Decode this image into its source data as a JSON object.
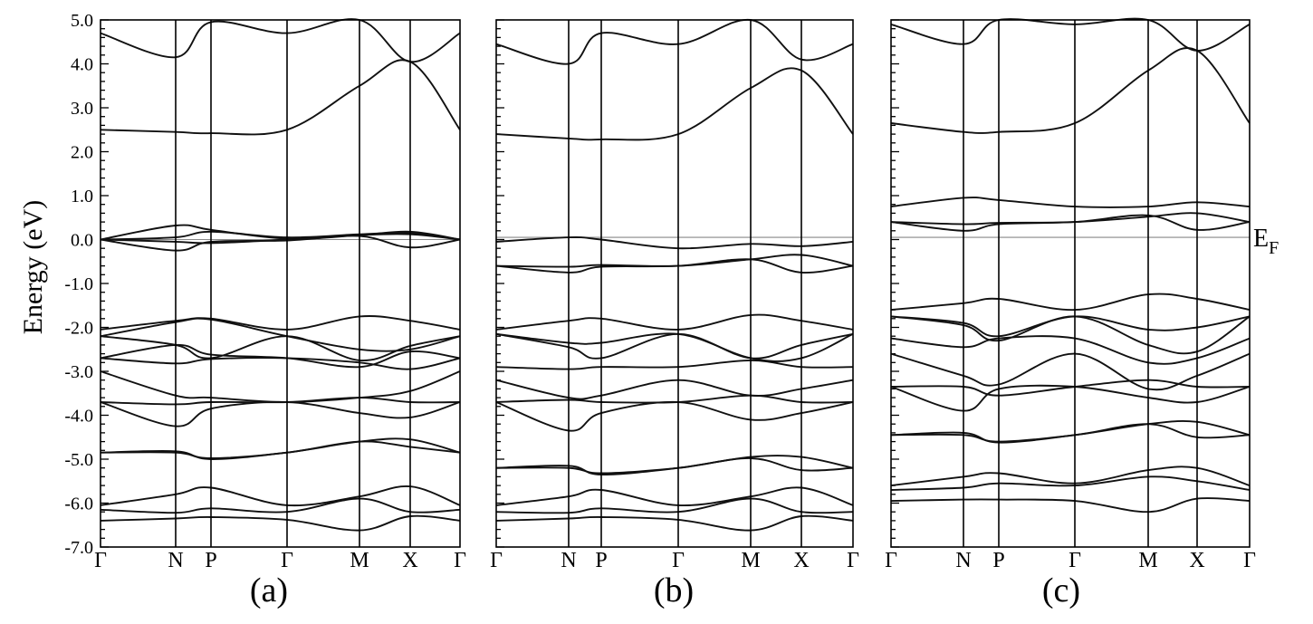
{
  "figure": {
    "ylabel": "Energy (eV)",
    "fermi_label": "E",
    "fermi_sub": "F"
  },
  "chart_data": [
    {
      "type": "line",
      "panel": "(a)",
      "ylabel": "Energy (eV)",
      "ylim": [
        -7.0,
        5.0
      ],
      "yticks": [
        "5.0",
        "4.0",
        "3.0",
        "2.0",
        "1.0",
        "0.0",
        "-1.0",
        "-2.0",
        "-3.0",
        "-4.0",
        "-5.0",
        "-6.0",
        "-7.0"
      ],
      "kpoints": [
        "Γ",
        "N",
        "P",
        "Γ",
        "M",
        "X",
        "Γ"
      ],
      "fermi_level": 0.0,
      "grid": false,
      "series": [
        {
          "x": [
            0,
            1,
            2,
            3,
            4,
            5,
            6
          ],
          "y": [
            -6.4,
            -6.35,
            -6.32,
            -6.38,
            -6.62,
            -6.3,
            -6.4
          ]
        },
        {
          "x": [
            0,
            1,
            2,
            3,
            4,
            5,
            6
          ],
          "y": [
            -6.15,
            -6.22,
            -6.12,
            -6.2,
            -5.9,
            -6.2,
            -6.15
          ]
        },
        {
          "x": [
            0,
            1,
            2,
            3,
            4,
            5,
            6
          ],
          "y": [
            -6.05,
            -5.8,
            -5.65,
            -6.05,
            -5.85,
            -5.62,
            -6.05
          ]
        },
        {
          "x": [
            0,
            1,
            2,
            3,
            4,
            5,
            6
          ],
          "y": [
            -4.85,
            -4.82,
            -5.0,
            -4.85,
            -4.6,
            -4.55,
            -4.85
          ]
        },
        {
          "x": [
            0,
            1,
            2,
            3,
            4,
            5,
            6
          ],
          "y": [
            -4.85,
            -4.85,
            -4.98,
            -4.85,
            -4.6,
            -4.72,
            -4.85
          ]
        },
        {
          "x": [
            0,
            1,
            2,
            3,
            4,
            5,
            6
          ],
          "y": [
            -3.7,
            -4.25,
            -3.85,
            -3.7,
            -3.95,
            -4.05,
            -3.7
          ]
        },
        {
          "x": [
            0,
            1,
            2,
            3,
            4,
            5,
            6
          ],
          "y": [
            -3.7,
            -3.75,
            -3.7,
            -3.7,
            -3.6,
            -3.7,
            -3.7
          ]
        },
        {
          "x": [
            0,
            1,
            2,
            3,
            4,
            5,
            6
          ],
          "y": [
            -3.0,
            -3.55,
            -3.6,
            -3.7,
            -3.6,
            -3.45,
            -3.0
          ]
        },
        {
          "x": [
            0,
            1,
            2,
            3,
            4,
            5,
            6
          ],
          "y": [
            -2.7,
            -2.82,
            -2.72,
            -2.7,
            -2.8,
            -2.95,
            -2.7
          ]
        },
        {
          "x": [
            0,
            1,
            2,
            3,
            4,
            5,
            6
          ],
          "y": [
            -2.7,
            -2.4,
            -2.62,
            -2.7,
            -2.9,
            -2.55,
            -2.7
          ]
        },
        {
          "x": [
            0,
            1,
            2,
            3,
            4,
            5,
            6
          ],
          "y": [
            -2.2,
            -2.4,
            -2.7,
            -2.2,
            -2.75,
            -2.42,
            -2.2
          ]
        },
        {
          "x": [
            0,
            1,
            2,
            3,
            4,
            5,
            6
          ],
          "y": [
            -2.2,
            -1.88,
            -1.82,
            -2.2,
            -2.5,
            -2.5,
            -2.2
          ]
        },
        {
          "x": [
            0,
            1,
            2,
            3,
            4,
            5,
            6
          ],
          "y": [
            -2.05,
            -1.85,
            -1.8,
            -2.05,
            -1.75,
            -1.85,
            -2.05
          ]
        },
        {
          "x": [
            0,
            1,
            2,
            3,
            4,
            5,
            6
          ],
          "y": [
            0.0,
            -0.25,
            -0.05,
            -0.02,
            0.08,
            -0.18,
            0.0
          ]
        },
        {
          "x": [
            0,
            1,
            2,
            3,
            4,
            5,
            6
          ],
          "y": [
            0.0,
            -0.05,
            -0.08,
            0.0,
            0.1,
            0.12,
            0.0
          ]
        },
        {
          "x": [
            0,
            1,
            2,
            3,
            4,
            5,
            6
          ],
          "y": [
            0.0,
            0.05,
            0.18,
            0.05,
            0.12,
            0.15,
            0.0
          ]
        },
        {
          "x": [
            0,
            1,
            2,
            3,
            4,
            5,
            6
          ],
          "y": [
            0.0,
            0.32,
            0.22,
            0.02,
            0.1,
            0.18,
            0.0
          ]
        },
        {
          "x": [
            0,
            1,
            2,
            3,
            4,
            5,
            6
          ],
          "y": [
            2.5,
            2.45,
            2.42,
            2.5,
            3.5,
            4.05,
            2.5
          ]
        },
        {
          "x": [
            0,
            1,
            2,
            3,
            4,
            5,
            6
          ],
          "y": [
            4.7,
            4.15,
            4.95,
            4.7,
            5.0,
            4.05,
            4.7
          ]
        }
      ]
    },
    {
      "type": "line",
      "panel": "(b)",
      "ylim": [
        -7.0,
        5.0
      ],
      "kpoints": [
        "Γ",
        "N",
        "P",
        "Γ",
        "M",
        "X",
        "Γ"
      ],
      "fermi_level": 0.05,
      "grid": false,
      "series": [
        {
          "x": [
            0,
            1,
            2,
            3,
            4,
            5,
            6
          ],
          "y": [
            -6.4,
            -6.35,
            -6.32,
            -6.38,
            -6.62,
            -6.3,
            -6.4
          ]
        },
        {
          "x": [
            0,
            1,
            2,
            3,
            4,
            5,
            6
          ],
          "y": [
            -6.2,
            -6.22,
            -6.12,
            -6.2,
            -5.9,
            -6.2,
            -6.2
          ]
        },
        {
          "x": [
            0,
            1,
            2,
            3,
            4,
            5,
            6
          ],
          "y": [
            -6.05,
            -5.85,
            -5.7,
            -6.05,
            -5.85,
            -5.65,
            -6.05
          ]
        },
        {
          "x": [
            0,
            1,
            2,
            3,
            4,
            5,
            6
          ],
          "y": [
            -5.2,
            -5.15,
            -5.35,
            -5.2,
            -4.95,
            -4.95,
            -5.2
          ]
        },
        {
          "x": [
            0,
            1,
            2,
            3,
            4,
            5,
            6
          ],
          "y": [
            -5.2,
            -5.2,
            -5.32,
            -5.2,
            -4.98,
            -5.25,
            -5.2
          ]
        },
        {
          "x": [
            0,
            1,
            2,
            3,
            4,
            5,
            6
          ],
          "y": [
            -3.7,
            -4.35,
            -3.95,
            -3.7,
            -4.1,
            -3.95,
            -3.7
          ]
        },
        {
          "x": [
            0,
            1,
            2,
            3,
            4,
            5,
            6
          ],
          "y": [
            -3.7,
            -3.65,
            -3.7,
            -3.7,
            -3.55,
            -3.7,
            -3.7
          ]
        },
        {
          "x": [
            0,
            1,
            2,
            3,
            4,
            5,
            6
          ],
          "y": [
            -3.2,
            -3.6,
            -3.55,
            -3.2,
            -3.55,
            -3.4,
            -3.2
          ]
        },
        {
          "x": [
            0,
            1,
            2,
            3,
            4,
            5,
            6
          ],
          "y": [
            -2.9,
            -2.95,
            -2.9,
            -2.9,
            -2.75,
            -2.9,
            -2.9
          ]
        },
        {
          "x": [
            0,
            1,
            2,
            3,
            4,
            5,
            6
          ],
          "y": [
            -2.15,
            -2.45,
            -2.7,
            -2.15,
            -2.7,
            -2.4,
            -2.15
          ]
        },
        {
          "x": [
            0,
            1,
            2,
            3,
            4,
            5,
            6
          ],
          "y": [
            -2.15,
            -2.35,
            -2.35,
            -2.15,
            -2.7,
            -2.7,
            -2.15
          ]
        },
        {
          "x": [
            0,
            1,
            2,
            3,
            4,
            5,
            6
          ],
          "y": [
            -2.05,
            -1.85,
            -1.8,
            -2.05,
            -1.72,
            -1.85,
            -2.05
          ]
        },
        {
          "x": [
            0,
            1,
            2,
            3,
            4,
            5,
            6
          ],
          "y": [
            -0.6,
            -0.75,
            -0.62,
            -0.6,
            -0.45,
            -0.75,
            -0.6
          ]
        },
        {
          "x": [
            0,
            1,
            2,
            3,
            4,
            5,
            6
          ],
          "y": [
            -0.6,
            -0.62,
            -0.58,
            -0.6,
            -0.45,
            -0.35,
            -0.6
          ]
        },
        {
          "x": [
            0,
            1,
            2,
            3,
            4,
            5,
            6
          ],
          "y": [
            -0.05,
            0.05,
            0.0,
            -0.2,
            -0.1,
            -0.15,
            -0.05
          ]
        },
        {
          "x": [
            0,
            1,
            2,
            3,
            4,
            5,
            6
          ],
          "y": [
            2.4,
            2.3,
            2.28,
            2.4,
            3.45,
            3.85,
            2.4
          ]
        },
        {
          "x": [
            0,
            1,
            2,
            3,
            4,
            5,
            6
          ],
          "y": [
            4.45,
            4.0,
            4.7,
            4.45,
            5.0,
            4.1,
            4.45
          ]
        }
      ]
    },
    {
      "type": "line",
      "panel": "(c)",
      "ylim": [
        -7.0,
        5.0
      ],
      "kpoints": [
        "Γ",
        "N",
        "P",
        "Γ",
        "M",
        "X",
        "Γ"
      ],
      "fermi_level": 0.05,
      "fermi_annotation": "EF",
      "grid": false,
      "series": [
        {
          "x": [
            0,
            1,
            2,
            3,
            4,
            5,
            6
          ],
          "y": [
            -5.95,
            -5.92,
            -5.92,
            -5.95,
            -6.2,
            -5.9,
            -5.95
          ]
        },
        {
          "x": [
            0,
            1,
            2,
            3,
            4,
            5,
            6
          ],
          "y": [
            -5.7,
            -5.65,
            -5.55,
            -5.6,
            -5.4,
            -5.5,
            -5.7
          ]
        },
        {
          "x": [
            0,
            1,
            2,
            3,
            4,
            5,
            6
          ],
          "y": [
            -5.6,
            -5.4,
            -5.32,
            -5.55,
            -5.25,
            -5.2,
            -5.6
          ]
        },
        {
          "x": [
            0,
            1,
            2,
            3,
            4,
            5,
            6
          ],
          "y": [
            -4.45,
            -4.4,
            -4.62,
            -4.45,
            -4.2,
            -4.15,
            -4.45
          ]
        },
        {
          "x": [
            0,
            1,
            2,
            3,
            4,
            5,
            6
          ],
          "y": [
            -4.45,
            -4.45,
            -4.6,
            -4.45,
            -4.2,
            -4.5,
            -4.45
          ]
        },
        {
          "x": [
            0,
            1,
            2,
            3,
            4,
            5,
            6
          ],
          "y": [
            -3.35,
            -3.9,
            -3.4,
            -3.35,
            -3.6,
            -3.7,
            -3.35
          ]
        },
        {
          "x": [
            0,
            1,
            2,
            3,
            4,
            5,
            6
          ],
          "y": [
            -3.35,
            -3.35,
            -3.55,
            -3.35,
            -3.2,
            -3.35,
            -3.35
          ]
        },
        {
          "x": [
            0,
            1,
            2,
            3,
            4,
            5,
            6
          ],
          "y": [
            -2.6,
            -3.1,
            -3.3,
            -2.6,
            -3.4,
            -3.1,
            -2.6
          ]
        },
        {
          "x": [
            0,
            1,
            2,
            3,
            4,
            5,
            6
          ],
          "y": [
            -2.25,
            -2.45,
            -2.25,
            -2.25,
            -2.8,
            -2.7,
            -2.25
          ]
        },
        {
          "x": [
            0,
            1,
            2,
            3,
            4,
            5,
            6
          ],
          "y": [
            -1.75,
            -1.95,
            -2.3,
            -1.75,
            -2.4,
            -2.55,
            -1.75
          ]
        },
        {
          "x": [
            0,
            1,
            2,
            3,
            4,
            5,
            6
          ],
          "y": [
            -1.75,
            -1.9,
            -2.2,
            -1.75,
            -2.05,
            -2.0,
            -1.75
          ]
        },
        {
          "x": [
            0,
            1,
            2,
            3,
            4,
            5,
            6
          ],
          "y": [
            -1.6,
            -1.45,
            -1.35,
            -1.6,
            -1.25,
            -1.35,
            -1.6
          ]
        },
        {
          "x": [
            0,
            1,
            2,
            3,
            4,
            5,
            6
          ],
          "y": [
            0.4,
            0.2,
            0.35,
            0.4,
            0.55,
            0.22,
            0.4
          ]
        },
        {
          "x": [
            0,
            1,
            2,
            3,
            4,
            5,
            6
          ],
          "y": [
            0.4,
            0.35,
            0.38,
            0.4,
            0.52,
            0.6,
            0.4
          ]
        },
        {
          "x": [
            0,
            1,
            2,
            3,
            4,
            5,
            6
          ],
          "y": [
            0.75,
            0.95,
            0.9,
            0.75,
            0.75,
            0.85,
            0.75
          ]
        },
        {
          "x": [
            0,
            1,
            2,
            3,
            4,
            5,
            6
          ],
          "y": [
            2.65,
            2.45,
            2.45,
            2.65,
            3.85,
            4.3,
            2.65
          ]
        },
        {
          "x": [
            0,
            1,
            2,
            3,
            4,
            5,
            6
          ],
          "y": [
            4.9,
            4.45,
            5.0,
            4.9,
            5.0,
            4.3,
            4.9
          ]
        }
      ]
    }
  ]
}
